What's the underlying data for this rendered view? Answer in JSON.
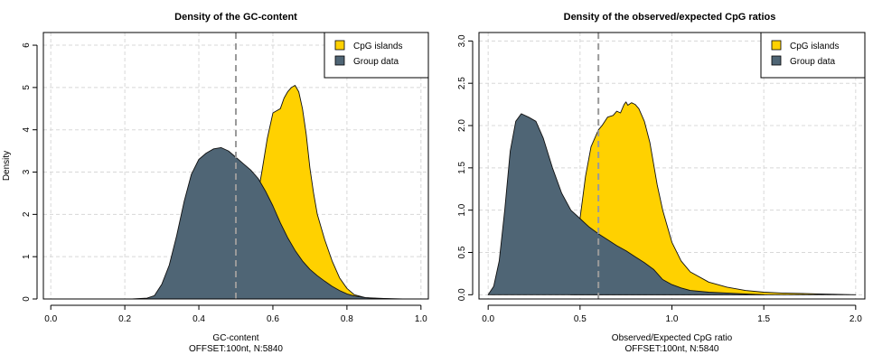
{
  "colors": {
    "cpg": "#FFD100",
    "group": "#4F6575",
    "outline": "#111111",
    "grid": "#D8D8D8",
    "threshold": "#9A9A9A"
  },
  "chart_data": [
    {
      "type": "area",
      "title": "Density of the GC-content",
      "xlabel": "GC-content",
      "xlabel2": "OFFSET:100nt, N:5840",
      "ylabel": "Density",
      "xlim": [
        -0.02,
        1.02
      ],
      "ylim": [
        0,
        6.3
      ],
      "xticks": [
        0.0,
        0.2,
        0.4,
        0.6,
        0.8,
        1.0
      ],
      "xticklabels": [
        "0.0",
        "0.2",
        "0.4",
        "0.6",
        "0.8",
        "1.0"
      ],
      "yticks": [
        0,
        1,
        2,
        3,
        4,
        5,
        6
      ],
      "yticklabels": [
        "0",
        "1",
        "2",
        "3",
        "4",
        "5",
        "6"
      ],
      "grid": true,
      "vline": 0.5,
      "legend_position": "top-right",
      "series": [
        {
          "name": "CpG islands",
          "color": "#FFD100",
          "x": [
            0.35,
            0.45,
            0.5,
            0.53,
            0.55,
            0.57,
            0.585,
            0.6,
            0.61,
            0.62,
            0.63,
            0.64,
            0.65,
            0.66,
            0.67,
            0.68,
            0.69,
            0.7,
            0.71,
            0.72,
            0.74,
            0.76,
            0.78,
            0.8,
            0.82,
            0.85,
            0.9,
            0.95
          ],
          "y": [
            0.0,
            0.02,
            0.15,
            0.9,
            2.0,
            3.0,
            3.8,
            4.4,
            4.45,
            4.5,
            4.75,
            4.9,
            5.0,
            5.05,
            4.9,
            4.5,
            3.9,
            3.1,
            2.5,
            2.0,
            1.4,
            0.9,
            0.5,
            0.25,
            0.1,
            0.03,
            0.01,
            0.0
          ]
        },
        {
          "name": "Group data",
          "color": "#4F6575",
          "x": [
            0.22,
            0.26,
            0.28,
            0.3,
            0.32,
            0.34,
            0.36,
            0.38,
            0.4,
            0.42,
            0.44,
            0.46,
            0.48,
            0.5,
            0.52,
            0.54,
            0.56,
            0.58,
            0.6,
            0.62,
            0.64,
            0.66,
            0.68,
            0.7,
            0.72,
            0.74,
            0.76,
            0.78,
            0.8,
            0.82,
            0.85,
            0.88,
            0.92,
            0.95
          ],
          "y": [
            0.0,
            0.02,
            0.08,
            0.35,
            0.8,
            1.5,
            2.3,
            2.95,
            3.3,
            3.45,
            3.55,
            3.58,
            3.5,
            3.35,
            3.2,
            3.05,
            2.85,
            2.55,
            2.2,
            1.8,
            1.45,
            1.15,
            0.9,
            0.7,
            0.55,
            0.42,
            0.3,
            0.2,
            0.12,
            0.07,
            0.03,
            0.01,
            0.0,
            0.0
          ]
        }
      ]
    },
    {
      "type": "area",
      "title": "Density of the observed/expected CpG ratios",
      "xlabel": "Observed/Expected CpG ratio",
      "xlabel2": "OFFSET:100nt, N:5840",
      "ylabel": "",
      "xlim": [
        -0.05,
        2.05
      ],
      "ylim": [
        -0.05,
        3.1
      ],
      "xticks": [
        0.0,
        0.5,
        1.0,
        1.5,
        2.0
      ],
      "xticklabels": [
        "0.0",
        "0.5",
        "1.0",
        "1.5",
        "2.0"
      ],
      "yticks": [
        0.0,
        0.5,
        1.0,
        1.5,
        2.0,
        2.5,
        3.0
      ],
      "yticklabels": [
        "0.0",
        "0.5",
        "1.0",
        "1.5",
        "2.0",
        "2.5",
        "3.0"
      ],
      "grid": true,
      "vline": 0.6,
      "legend_position": "top-right",
      "series": [
        {
          "name": "CpG islands",
          "color": "#FFD100",
          "x": [
            0.45,
            0.49,
            0.5,
            0.53,
            0.56,
            0.6,
            0.62,
            0.65,
            0.68,
            0.7,
            0.72,
            0.74,
            0.75,
            0.76,
            0.78,
            0.8,
            0.82,
            0.85,
            0.88,
            0.92,
            0.95,
            1.0,
            1.05,
            1.1,
            1.2,
            1.3,
            1.4,
            1.5,
            1.6,
            1.8,
            2.0
          ],
          "y": [
            0.0,
            0.3,
            0.9,
            1.4,
            1.75,
            1.95,
            2.0,
            2.1,
            2.12,
            2.17,
            2.15,
            2.25,
            2.28,
            2.24,
            2.27,
            2.25,
            2.2,
            2.05,
            1.8,
            1.3,
            1.0,
            0.62,
            0.4,
            0.27,
            0.15,
            0.09,
            0.05,
            0.03,
            0.02,
            0.01,
            0.0
          ]
        },
        {
          "name": "Group data",
          "color": "#4F6575",
          "x": [
            0.0,
            0.03,
            0.06,
            0.09,
            0.12,
            0.15,
            0.18,
            0.22,
            0.26,
            0.3,
            0.35,
            0.4,
            0.45,
            0.5,
            0.55,
            0.6,
            0.65,
            0.7,
            0.75,
            0.8,
            0.85,
            0.9,
            0.95,
            1.0,
            1.05,
            1.1,
            1.2,
            1.3,
            1.4,
            1.5
          ],
          "y": [
            0.0,
            0.1,
            0.4,
            1.0,
            1.7,
            2.05,
            2.14,
            2.1,
            2.05,
            1.85,
            1.5,
            1.2,
            1.0,
            0.9,
            0.8,
            0.72,
            0.65,
            0.58,
            0.52,
            0.45,
            0.38,
            0.3,
            0.18,
            0.12,
            0.08,
            0.05,
            0.03,
            0.02,
            0.01,
            0.0
          ]
        }
      ]
    }
  ]
}
